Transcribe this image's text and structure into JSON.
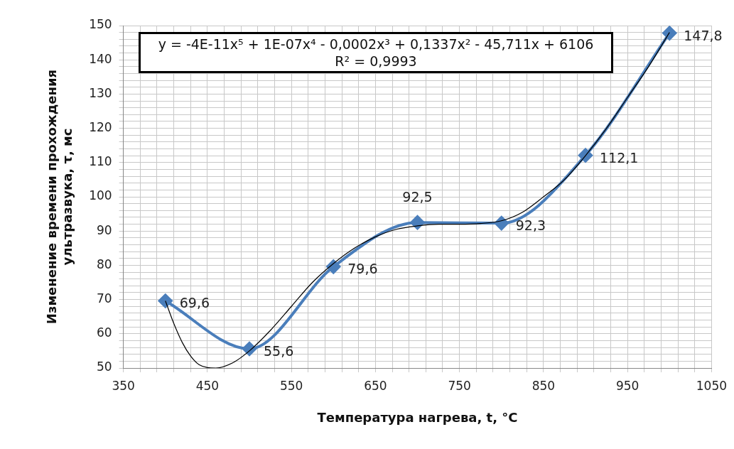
{
  "chart_data": {
    "type": "line",
    "xlabel": "Температура нагрева, t, °C",
    "ylabel": "Изменение времени прохождения\nультразвука, τ, мс",
    "x": [
      400,
      500,
      600,
      700,
      800,
      900,
      1000
    ],
    "series": [
      {
        "color": "#4a7ebb",
        "values": [
          69.6,
          55.6,
          79.6,
          92.5,
          92.3,
          112.1,
          147.8
        ],
        "value_labels": [
          "69,6",
          "55,6",
          "79,6",
          "92,5",
          "92,3",
          "112,1",
          "147,8"
        ],
        "marker": "diamond"
      },
      {
        "color": "#000000",
        "marker": "none",
        "x": [
          400,
          410,
          420,
          430,
          440,
          460,
          480,
          500,
          525,
          550,
          575,
          600,
          625,
          650,
          675,
          700,
          725,
          750,
          775,
          800,
          825,
          850,
          875,
          900,
          925,
          950,
          975,
          1000
        ],
        "values": [
          69.6,
          63,
          57.5,
          53.5,
          51,
          50,
          51.5,
          55,
          61,
          68,
          75,
          80.5,
          85,
          88.3,
          90.5,
          91.5,
          92,
          92,
          92.2,
          93,
          95.5,
          100,
          105,
          112,
          120,
          129,
          138,
          148
        ]
      }
    ],
    "xlim": [
      350,
      1050
    ],
    "xticks": [
      350,
      {
        "value": 370,
        "label": null
      },
      {
        "value": 390,
        "label": null
      },
      {
        "value": 410,
        "label": null
      },
      {
        "value": 430,
        "label": null
      },
      450,
      {
        "value": 470,
        "label": null
      },
      {
        "value": 490,
        "label": null
      },
      {
        "value": 510,
        "label": null
      },
      {
        "value": 530,
        "label": null
      },
      550,
      {
        "value": 570,
        "label": null
      },
      {
        "value": 590,
        "label": null
      },
      {
        "value": 610,
        "label": null
      },
      {
        "value": 630,
        "label": null
      },
      650,
      {
        "value": 670,
        "label": null
      },
      {
        "value": 690,
        "label": null
      },
      {
        "value": 710,
        "label": null
      },
      {
        "value": 730,
        "label": null
      },
      750,
      {
        "value": 770,
        "label": null
      },
      {
        "value": 790,
        "label": null
      },
      {
        "value": 810,
        "label": null
      },
      {
        "value": 830,
        "label": null
      },
      850,
      {
        "value": 870,
        "label": null
      },
      {
        "value": 890,
        "label": null
      },
      {
        "value": 910,
        "label": null
      },
      {
        "value": 930,
        "label": null
      },
      950,
      {
        "value": 970,
        "label": null
      },
      {
        "value": 990,
        "label": null
      },
      {
        "value": 1010,
        "label": null
      },
      {
        "value": 1030,
        "label": null
      },
      1050
    ],
    "ylim": [
      50,
      150
    ],
    "yticks": [
      50,
      {
        "value": 52,
        "label": null
      },
      {
        "value": 54,
        "label": null
      },
      {
        "value": 56,
        "label": null
      },
      {
        "value": 58,
        "label": null
      },
      60,
      {
        "value": 62,
        "label": null
      },
      {
        "value": 64,
        "label": null
      },
      {
        "value": 66,
        "label": null
      },
      {
        "value": 68,
        "label": null
      },
      70,
      {
        "value": 72,
        "label": null
      },
      {
        "value": 74,
        "label": null
      },
      {
        "value": 76,
        "label": null
      },
      {
        "value": 78,
        "label": null
      },
      80,
      {
        "value": 82,
        "label": null
      },
      {
        "value": 84,
        "label": null
      },
      {
        "value": 86,
        "label": null
      },
      {
        "value": 88,
        "label": null
      },
      90,
      {
        "value": 92,
        "label": null
      },
      {
        "value": 94,
        "label": null
      },
      {
        "value": 96,
        "label": null
      },
      {
        "value": 98,
        "label": null
      },
      100,
      {
        "value": 102,
        "label": null
      },
      {
        "value": 104,
        "label": null
      },
      {
        "value": 106,
        "label": null
      },
      {
        "value": 108,
        "label": null
      },
      110,
      {
        "value": 112,
        "label": null
      },
      {
        "value": 114,
        "label": null
      },
      {
        "value": 116,
        "label": null
      },
      {
        "value": 118,
        "label": null
      },
      120,
      {
        "value": 122,
        "label": null
      },
      {
        "value": 124,
        "label": null
      },
      {
        "value": 126,
        "label": null
      },
      {
        "value": 128,
        "label": null
      },
      130,
      {
        "value": 132,
        "label": null
      },
      {
        "value": 134,
        "label": null
      },
      {
        "value": 136,
        "label": null
      },
      {
        "value": 138,
        "label": null
      },
      140,
      {
        "value": 142,
        "label": null
      },
      {
        "value": 144,
        "label": null
      },
      {
        "value": 146,
        "label": null
      },
      {
        "value": 148,
        "label": null
      },
      150
    ],
    "grid": true,
    "legend": false,
    "annotations": [
      "y = -4E-11x⁵ + 1E-07x⁴ - 0,0002x³ + 0,1337x² - 45,711x + 6106",
      "R² = 0,9993"
    ]
  }
}
